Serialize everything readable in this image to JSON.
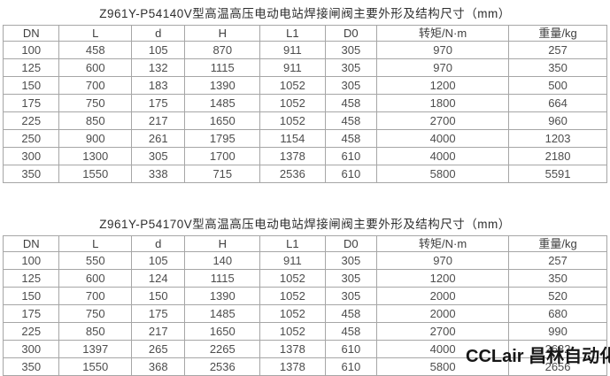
{
  "colors": {
    "border": "#a6a6a6",
    "cell_text": "#4d4d4d",
    "title_text": "#2e2e2e",
    "watermark_text": "#161616",
    "background": "#ffffff"
  },
  "tables": [
    {
      "title": "Z961Y-P54140V型高温高压电动电站焊接闸阀主要外形及结构尺寸（mm）",
      "headers": [
        "DN",
        "L",
        "d",
        "H",
        "L1",
        "D0",
        "转矩/N·m",
        "重量/kg"
      ],
      "rows": [
        [
          "100",
          "458",
          "105",
          "870",
          "911",
          "305",
          "970",
          "257"
        ],
        [
          "125",
          "600",
          "132",
          "1115",
          "911",
          "305",
          "970",
          "350"
        ],
        [
          "150",
          "700",
          "183",
          "1390",
          "1052",
          "305",
          "1200",
          "500"
        ],
        [
          "175",
          "750",
          "175",
          "1485",
          "1052",
          "458",
          "1800",
          "664"
        ],
        [
          "225",
          "850",
          "217",
          "1650",
          "1052",
          "458",
          "2700",
          "960"
        ],
        [
          "250",
          "900",
          "261",
          "1795",
          "1154",
          "458",
          "4000",
          "1203"
        ],
        [
          "300",
          "1300",
          "305",
          "1700",
          "1378",
          "610",
          "4000",
          "2180"
        ],
        [
          "350",
          "1550",
          "338",
          "715",
          "2536",
          "610",
          "5800",
          "5591"
        ]
      ]
    },
    {
      "title": "Z961Y-P54170V型高温高压电动电站焊接闸阀主要外形及结构尺寸（mm）",
      "headers": [
        "DN",
        "L",
        "d",
        "H",
        "L1",
        "D0",
        "转矩/N·m",
        "重量/kg"
      ],
      "rows": [
        [
          "100",
          "550",
          "105",
          "140",
          "911",
          "305",
          "970",
          "257"
        ],
        [
          "125",
          "600",
          "124",
          "1115",
          "1052",
          "305",
          "1200",
          "350"
        ],
        [
          "150",
          "700",
          "150",
          "1390",
          "1052",
          "305",
          "2000",
          "520"
        ],
        [
          "175",
          "750",
          "175",
          "1485",
          "1052",
          "458",
          "2000",
          "680"
        ],
        [
          "225",
          "850",
          "217",
          "1650",
          "1052",
          "458",
          "2700",
          "990"
        ],
        [
          "300",
          "1397",
          "265",
          "2265",
          "1378",
          "610",
          "4000",
          "2632"
        ],
        [
          "350",
          "1550",
          "368",
          "2536",
          "1378",
          "610",
          "5800",
          "2656"
        ]
      ]
    }
  ],
  "watermark": {
    "text": "CCLair 昌林自动化"
  }
}
